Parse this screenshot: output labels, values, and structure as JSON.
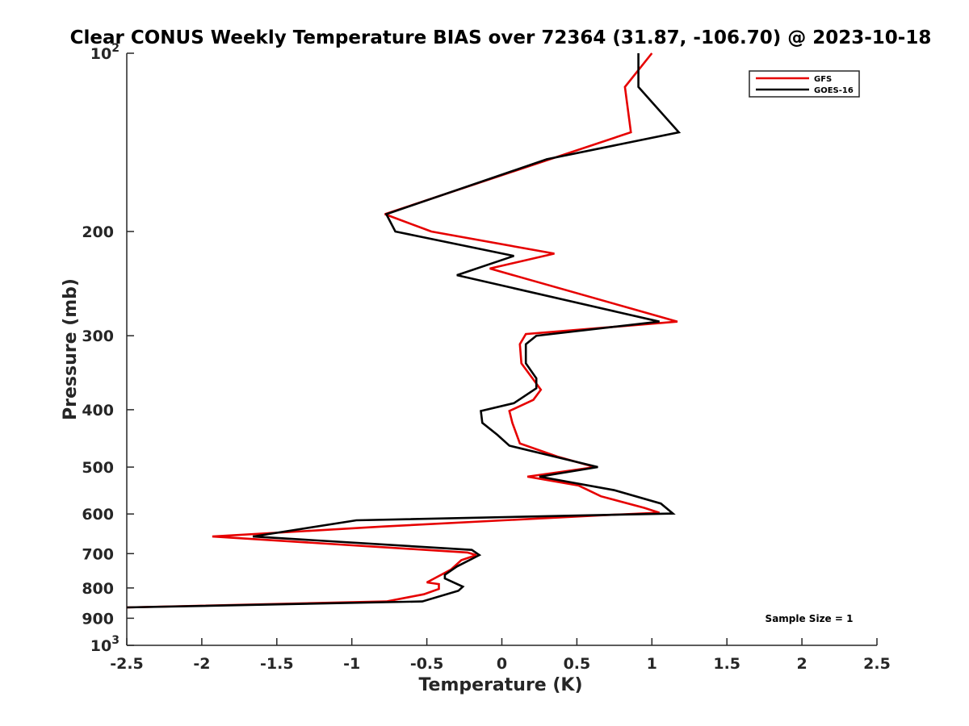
{
  "chart_data": {
    "type": "line",
    "title": "Clear CONUS Weekly Temperature BIAS over 72364 (31.87, -106.70) @ 2023-10-18",
    "xlabel": "Temperature (K)",
    "ylabel": "Pressure (mb)",
    "xlim": [
      -2.5,
      2.5
    ],
    "ylim": [
      100,
      1000
    ],
    "yscale": "log",
    "y_reversed": true,
    "grid": false,
    "legend_position": "top-right",
    "xticks": [
      {
        "value": -2.5,
        "label": "-2.5"
      },
      {
        "value": -2,
        "label": "-2"
      },
      {
        "value": -1.5,
        "label": "-1.5"
      },
      {
        "value": -1,
        "label": "-1"
      },
      {
        "value": -0.5,
        "label": "-0.5"
      },
      {
        "value": 0,
        "label": "0"
      },
      {
        "value": 0.5,
        "label": "0.5"
      },
      {
        "value": 1,
        "label": "1"
      },
      {
        "value": 1.5,
        "label": "1.5"
      },
      {
        "value": 2,
        "label": "2"
      },
      {
        "value": 2.5,
        "label": "2.5"
      }
    ],
    "yticks": [
      {
        "value": 100,
        "base": "10",
        "exp": "2"
      },
      {
        "value": 200,
        "label": "200"
      },
      {
        "value": 300,
        "label": "300"
      },
      {
        "value": 400,
        "label": "400"
      },
      {
        "value": 500,
        "label": "500"
      },
      {
        "value": 600,
        "label": "600"
      },
      {
        "value": 700,
        "label": "700"
      },
      {
        "value": 800,
        "label": "800"
      },
      {
        "value": 900,
        "label": "900"
      },
      {
        "value": 1000,
        "base": "10",
        "exp": "3"
      }
    ],
    "annotation": "Sample Size = 1",
    "series": [
      {
        "name": "GFS",
        "color": "#e60000",
        "points": [
          {
            "x": 1.0,
            "y": 100
          },
          {
            "x": 0.82,
            "y": 114
          },
          {
            "x": 0.86,
            "y": 136
          },
          {
            "x": -0.78,
            "y": 187
          },
          {
            "x": -0.47,
            "y": 200
          },
          {
            "x": 0.35,
            "y": 218
          },
          {
            "x": -0.08,
            "y": 231
          },
          {
            "x": 1.17,
            "y": 284
          },
          {
            "x": 0.16,
            "y": 298
          },
          {
            "x": 0.12,
            "y": 310
          },
          {
            "x": 0.13,
            "y": 334
          },
          {
            "x": 0.26,
            "y": 370
          },
          {
            "x": 0.21,
            "y": 385
          },
          {
            "x": 0.05,
            "y": 402
          },
          {
            "x": 0.07,
            "y": 421
          },
          {
            "x": 0.12,
            "y": 456
          },
          {
            "x": 0.37,
            "y": 480
          },
          {
            "x": 0.62,
            "y": 500
          },
          {
            "x": 0.17,
            "y": 519
          },
          {
            "x": 0.51,
            "y": 537
          },
          {
            "x": 0.66,
            "y": 560
          },
          {
            "x": 0.95,
            "y": 586
          },
          {
            "x": 1.05,
            "y": 597
          },
          {
            "x": 0.66,
            "y": 603
          },
          {
            "x": -0.79,
            "y": 630
          },
          {
            "x": -1.93,
            "y": 655
          },
          {
            "x": -0.23,
            "y": 697
          },
          {
            "x": -0.17,
            "y": 704
          },
          {
            "x": -0.27,
            "y": 718
          },
          {
            "x": -0.34,
            "y": 745
          },
          {
            "x": -0.5,
            "y": 783
          },
          {
            "x": -0.42,
            "y": 788
          },
          {
            "x": -0.42,
            "y": 803
          },
          {
            "x": -0.52,
            "y": 820
          },
          {
            "x": -0.77,
            "y": 843
          },
          {
            "x": -2.5,
            "y": 863
          }
        ]
      },
      {
        "name": "GOES-16",
        "color": "#000000",
        "points": [
          {
            "x": 0.91,
            "y": 100
          },
          {
            "x": 0.91,
            "y": 114
          },
          {
            "x": 1.18,
            "y": 136
          },
          {
            "x": 0.3,
            "y": 151
          },
          {
            "x": -0.77,
            "y": 187
          },
          {
            "x": -0.71,
            "y": 200
          },
          {
            "x": 0.08,
            "y": 220
          },
          {
            "x": -0.3,
            "y": 237
          },
          {
            "x": 1.05,
            "y": 284
          },
          {
            "x": 0.23,
            "y": 300
          },
          {
            "x": 0.16,
            "y": 310
          },
          {
            "x": 0.16,
            "y": 334
          },
          {
            "x": 0.23,
            "y": 354
          },
          {
            "x": 0.23,
            "y": 368
          },
          {
            "x": 0.08,
            "y": 390
          },
          {
            "x": -0.14,
            "y": 402
          },
          {
            "x": -0.13,
            "y": 421
          },
          {
            "x": -0.03,
            "y": 441
          },
          {
            "x": 0.05,
            "y": 460
          },
          {
            "x": 0.64,
            "y": 500
          },
          {
            "x": 0.25,
            "y": 519
          },
          {
            "x": 0.75,
            "y": 547
          },
          {
            "x": 1.06,
            "y": 576
          },
          {
            "x": 1.14,
            "y": 599
          },
          {
            "x": 0.57,
            "y": 603
          },
          {
            "x": -0.97,
            "y": 615
          },
          {
            "x": -1.66,
            "y": 655
          },
          {
            "x": -0.2,
            "y": 690
          },
          {
            "x": -0.15,
            "y": 704
          },
          {
            "x": -0.3,
            "y": 736
          },
          {
            "x": -0.38,
            "y": 760
          },
          {
            "x": -0.38,
            "y": 771
          },
          {
            "x": -0.26,
            "y": 796
          },
          {
            "x": -0.29,
            "y": 809
          },
          {
            "x": -0.53,
            "y": 843
          },
          {
            "x": -2.5,
            "y": 863
          }
        ]
      }
    ]
  }
}
